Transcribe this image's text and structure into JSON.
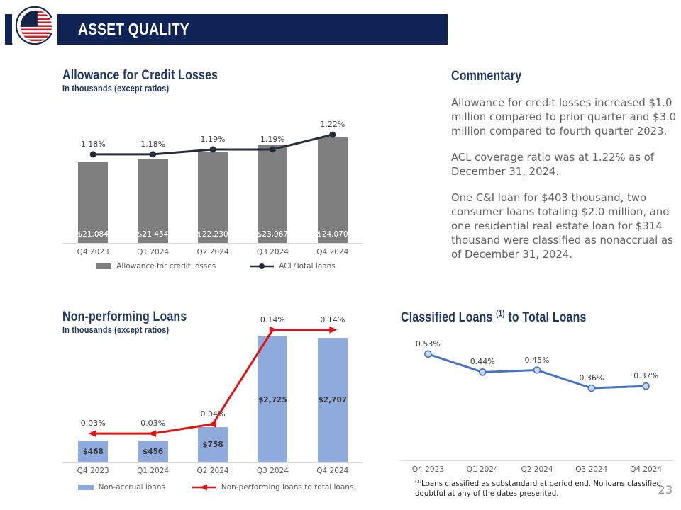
{
  "header": {
    "title": "ASSET QUALITY",
    "logo_icon": "us-flag-globe",
    "banner_color": "#0F2355"
  },
  "page": {
    "number": "23"
  },
  "commentary": {
    "title": "Commentary",
    "paragraphs": [
      "Allowance for credit losses increased $1.0 million compared to prior quarter and $3.0 million compared to fourth quarter 2023.",
      "ACL coverage ratio was at 1.22% as of December 31, 2024.",
      "One C&I loan for $403 thousand, two consumer loans totaling $2.0 million, and one residential real estate loan for $314 thousand were classified as nonaccrual as of December 31, 2024."
    ]
  },
  "chart_data": [
    {
      "id": "allowance-for-credit-losses",
      "type": "bar+line",
      "title": "Allowance for Credit Losses",
      "subtitle": "In thousands (except ratios)",
      "categories": [
        "Q4 2023",
        "Q1 2024",
        "Q2 2024",
        "Q3 2024",
        "Q4 2024"
      ],
      "legend_position": "bottom",
      "series": [
        {
          "name": "Allowance for credit losses",
          "type": "bar",
          "color": "#7F7F7F",
          "values": [
            21084,
            21454,
            22230,
            23067,
            24070
          ],
          "labels": [
            "$21,084",
            "$21,454",
            "$22,230",
            "$23,067",
            "$24,070"
          ],
          "axis": {
            "min": 11500,
            "max": 24500
          }
        },
        {
          "name": "ACL/Total loans",
          "type": "line",
          "color": "#242C39",
          "marker": "dot",
          "values": [
            1.18,
            1.18,
            1.19,
            1.19,
            1.22
          ],
          "labels": [
            "1.18%",
            "1.18%",
            "1.19%",
            "1.19%",
            "1.22%"
          ],
          "axis": {
            "min": 1.0,
            "max": 1.25
          }
        }
      ]
    },
    {
      "id": "non-performing-loans",
      "type": "bar+line",
      "title": "Non-performing Loans",
      "subtitle": "In thousands (except ratios)",
      "categories": [
        "Q4 2023",
        "Q1 2024",
        "Q2 2024",
        "Q3 2024",
        "Q4 2024"
      ],
      "legend_position": "bottom",
      "series": [
        {
          "name": "Non-accrual loans",
          "type": "bar",
          "color": "#8FAADC",
          "values": [
            468,
            456,
            758,
            2725,
            2707
          ],
          "labels": [
            "$468",
            "$456",
            "$758",
            "$2,725",
            "$2,707"
          ],
          "axis": {
            "min": 0,
            "max": 2900
          }
        },
        {
          "name": "Non-performing loans to total loans",
          "type": "line",
          "color": "#E31212",
          "marker": "arrow",
          "values": [
            0.03,
            0.03,
            0.04,
            0.14,
            0.14
          ],
          "labels": [
            "0.03%",
            "0.03%",
            "0.04%",
            "0.14%",
            "0.14%"
          ],
          "axis": {
            "min": 0,
            "max": 0.145
          }
        }
      ]
    },
    {
      "id": "classified-loans-to-total-loans",
      "type": "line",
      "title": "Classified Loans (1) to Total Loans",
      "title_main": "Classified Loans",
      "title_sup": "(1)",
      "title_tail": "to Total Loans",
      "categories": [
        "Q4 2023",
        "Q1 2024",
        "Q2 2024",
        "Q3 2024",
        "Q4 2024"
      ],
      "legend_position": "none",
      "series": [
        {
          "name": "Classified loans to total loans",
          "type": "line",
          "color": "#4472C4",
          "marker": "ring",
          "values": [
            0.53,
            0.44,
            0.45,
            0.36,
            0.37
          ],
          "labels": [
            "0.53%",
            "0.44%",
            "0.45%",
            "0.36%",
            "0.37%"
          ],
          "axis": {
            "min": 0,
            "max": 0.6
          }
        }
      ],
      "footnote_sup": "(1)",
      "footnote": "Loans classified as substandard at period end. No loans classified doubtful at any of the dates presented."
    }
  ]
}
